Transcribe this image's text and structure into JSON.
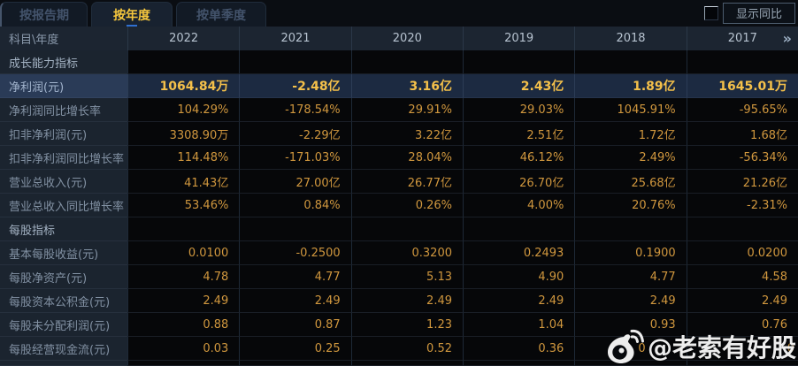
{
  "tabs": [
    {
      "label": "按报告期",
      "active": false
    },
    {
      "label": "按年度",
      "active": true
    },
    {
      "label": "按单季度",
      "active": false
    }
  ],
  "controls": {
    "show_yoy_label": "显示同比",
    "more_years_icon": "»"
  },
  "table": {
    "corner_label": "科目\\年度",
    "years": [
      "2022",
      "2021",
      "2020",
      "2019",
      "2018",
      "2017"
    ],
    "rows": [
      {
        "label": "成长能力指标",
        "type": "section",
        "values": [
          "",
          "",
          "",
          "",
          "",
          ""
        ]
      },
      {
        "label": "净利润(元)",
        "type": "highlight",
        "values": [
          "1064.84万",
          "-2.48亿",
          "3.16亿",
          "2.43亿",
          "1.89亿",
          "1645.01万"
        ]
      },
      {
        "label": "净利润同比增长率",
        "type": "data",
        "values": [
          "104.29%",
          "-178.54%",
          "29.91%",
          "29.03%",
          "1045.91%",
          "-95.65%"
        ]
      },
      {
        "label": "扣非净利润(元)",
        "type": "data",
        "values": [
          "3308.90万",
          "-2.29亿",
          "3.22亿",
          "2.51亿",
          "1.72亿",
          "1.68亿"
        ]
      },
      {
        "label": "扣非净利润同比增长率",
        "type": "data",
        "values": [
          "114.48%",
          "-171.03%",
          "28.04%",
          "46.12%",
          "2.49%",
          "-56.34%"
        ]
      },
      {
        "label": "营业总收入(元)",
        "type": "data",
        "values": [
          "41.43亿",
          "27.00亿",
          "26.77亿",
          "26.70亿",
          "25.68亿",
          "21.26亿"
        ]
      },
      {
        "label": "营业总收入同比增长率",
        "type": "data",
        "values": [
          "53.46%",
          "0.84%",
          "0.26%",
          "4.00%",
          "20.76%",
          "-2.31%"
        ]
      },
      {
        "label": "每股指标",
        "type": "section",
        "values": [
          "",
          "",
          "",
          "",
          "",
          ""
        ]
      },
      {
        "label": "基本每股收益(元)",
        "type": "data",
        "values": [
          "0.0100",
          "-0.2500",
          "0.3200",
          "0.2493",
          "0.1900",
          "0.0200"
        ]
      },
      {
        "label": "每股净资产(元)",
        "type": "data",
        "values": [
          "4.78",
          "4.77",
          "5.13",
          "4.90",
          "4.77",
          "4.58"
        ]
      },
      {
        "label": "每股资本公积金(元)",
        "type": "data",
        "values": [
          "2.49",
          "2.49",
          "2.49",
          "2.49",
          "2.49",
          "2.49"
        ]
      },
      {
        "label": "每股未分配利润(元)",
        "type": "data",
        "values": [
          "0.88",
          "0.87",
          "1.23",
          "1.04",
          "0.93",
          "0.76"
        ]
      },
      {
        "label": "每股经营现金流(元)",
        "type": "data",
        "values": [
          "0.03",
          "0.25",
          "0.52",
          "0.36",
          "0",
          "0"
        ]
      }
    ]
  },
  "watermark": {
    "text": "@老索有好股",
    "icon": "weibo-logo"
  },
  "colors": {
    "value_gold": "#d0973e",
    "highlight_gold": "#f4c04a",
    "tab_active_gold": "#f6c73d",
    "highlight_row_bg": "#1c2a41",
    "label_col_bg": "#1b242f",
    "header_bg": "#1c2531"
  }
}
